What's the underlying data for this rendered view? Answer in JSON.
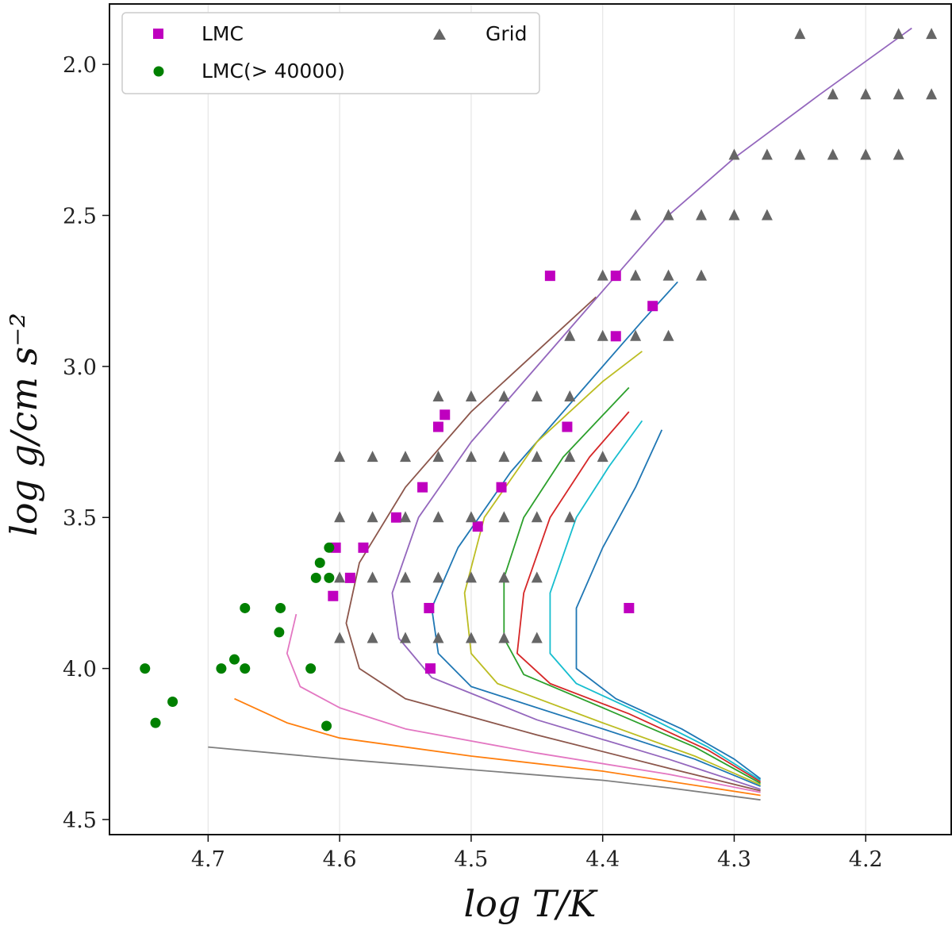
{
  "chart_data": {
    "type": "scatter",
    "xlabel": "log T/K",
    "ylabel": "log g/cm s⁻²",
    "xlim": [
      4.775,
      4.135
    ],
    "ylim": [
      4.55,
      1.8
    ],
    "x_ticks": [
      "4.7",
      "4.6",
      "4.5",
      "4.4",
      "4.3",
      "4.2"
    ],
    "y_ticks": [
      "2.0",
      "2.5",
      "3.0",
      "3.5",
      "4.0",
      "4.5"
    ],
    "grid": "x-only",
    "legend": {
      "placement": "top-left",
      "entries": [
        {
          "label": "LMC",
          "marker": "square",
          "color": "#bf00bf"
        },
        {
          "label": "LMC(> 40000)",
          "marker": "circle",
          "color": "#008000"
        },
        {
          "label": "Grid",
          "marker": "triangle",
          "color": "#666666"
        }
      ]
    },
    "scatter_series": [
      {
        "name": "LMC",
        "marker": "square",
        "color": "#bf00bf",
        "points": [
          [
            4.44,
            2.7
          ],
          [
            4.39,
            2.7
          ],
          [
            4.39,
            2.9
          ],
          [
            4.362,
            2.8
          ],
          [
            4.52,
            3.16
          ],
          [
            4.525,
            3.2
          ],
          [
            4.427,
            3.2
          ],
          [
            4.537,
            3.4
          ],
          [
            4.477,
            3.4
          ],
          [
            4.557,
            3.5
          ],
          [
            4.495,
            3.53
          ],
          [
            4.603,
            3.6
          ],
          [
            4.582,
            3.6
          ],
          [
            4.592,
            3.7
          ],
          [
            4.605,
            3.76
          ],
          [
            4.532,
            3.8
          ],
          [
            4.38,
            3.8
          ],
          [
            4.531,
            4.0
          ]
        ]
      },
      {
        "name": "LMC(> 40000)",
        "marker": "circle",
        "color": "#008000",
        "points": [
          [
            4.748,
            4.0
          ],
          [
            4.74,
            4.18
          ],
          [
            4.727,
            4.11
          ],
          [
            4.69,
            4.0
          ],
          [
            4.68,
            3.97
          ],
          [
            4.672,
            4.0
          ],
          [
            4.672,
            3.8
          ],
          [
            4.645,
            3.8
          ],
          [
            4.646,
            3.88
          ],
          [
            4.622,
            4.0
          ],
          [
            4.61,
            4.19
          ],
          [
            4.618,
            3.7
          ],
          [
            4.615,
            3.65
          ],
          [
            4.608,
            3.6
          ],
          [
            4.608,
            3.7
          ]
        ]
      },
      {
        "name": "Grid",
        "marker": "triangle",
        "color": "#666666",
        "points": [
          [
            4.25,
            1.9
          ],
          [
            4.175,
            1.9
          ],
          [
            4.15,
            1.9
          ],
          [
            4.225,
            2.1
          ],
          [
            4.2,
            2.1
          ],
          [
            4.175,
            2.1
          ],
          [
            4.15,
            2.1
          ],
          [
            4.3,
            2.3
          ],
          [
            4.275,
            2.3
          ],
          [
            4.25,
            2.3
          ],
          [
            4.225,
            2.3
          ],
          [
            4.2,
            2.3
          ],
          [
            4.175,
            2.3
          ],
          [
            4.375,
            2.5
          ],
          [
            4.35,
            2.5
          ],
          [
            4.325,
            2.5
          ],
          [
            4.3,
            2.5
          ],
          [
            4.275,
            2.5
          ],
          [
            4.4,
            2.7
          ],
          [
            4.375,
            2.7
          ],
          [
            4.35,
            2.7
          ],
          [
            4.325,
            2.7
          ],
          [
            4.425,
            2.9
          ],
          [
            4.4,
            2.9
          ],
          [
            4.375,
            2.9
          ],
          [
            4.35,
            2.9
          ],
          [
            4.525,
            3.1
          ],
          [
            4.5,
            3.1
          ],
          [
            4.475,
            3.1
          ],
          [
            4.45,
            3.1
          ],
          [
            4.425,
            3.1
          ],
          [
            4.6,
            3.3
          ],
          [
            4.575,
            3.3
          ],
          [
            4.55,
            3.3
          ],
          [
            4.525,
            3.3
          ],
          [
            4.5,
            3.3
          ],
          [
            4.475,
            3.3
          ],
          [
            4.45,
            3.3
          ],
          [
            4.425,
            3.3
          ],
          [
            4.4,
            3.3
          ],
          [
            4.6,
            3.5
          ],
          [
            4.575,
            3.5
          ],
          [
            4.55,
            3.5
          ],
          [
            4.525,
            3.5
          ],
          [
            4.5,
            3.5
          ],
          [
            4.475,
            3.5
          ],
          [
            4.45,
            3.5
          ],
          [
            4.425,
            3.5
          ],
          [
            4.6,
            3.7
          ],
          [
            4.575,
            3.7
          ],
          [
            4.55,
            3.7
          ],
          [
            4.525,
            3.7
          ],
          [
            4.5,
            3.7
          ],
          [
            4.475,
            3.7
          ],
          [
            4.45,
            3.7
          ],
          [
            4.6,
            3.9
          ],
          [
            4.575,
            3.9
          ],
          [
            4.55,
            3.9
          ],
          [
            4.525,
            3.9
          ],
          [
            4.5,
            3.9
          ],
          [
            4.475,
            3.9
          ],
          [
            4.45,
            3.9
          ]
        ]
      }
    ],
    "tracks": [
      {
        "color": "#7f7f7f",
        "points": [
          [
            4.7,
            4.26
          ],
          [
            4.6,
            4.3
          ],
          [
            4.5,
            4.335
          ],
          [
            4.4,
            4.37
          ],
          [
            4.35,
            4.395
          ],
          [
            4.28,
            4.435
          ]
        ]
      },
      {
        "color": "#ff7f0e",
        "points": [
          [
            4.68,
            4.1
          ],
          [
            4.64,
            4.18
          ],
          [
            4.6,
            4.23
          ],
          [
            4.5,
            4.29
          ],
          [
            4.4,
            4.34
          ],
          [
            4.28,
            4.42
          ]
        ]
      },
      {
        "color": "#e377c2",
        "points": [
          [
            4.633,
            3.82
          ],
          [
            4.64,
            3.95
          ],
          [
            4.63,
            4.06
          ],
          [
            4.6,
            4.13
          ],
          [
            4.55,
            4.2
          ],
          [
            4.45,
            4.28
          ],
          [
            4.35,
            4.35
          ],
          [
            4.28,
            4.41
          ]
        ]
      },
      {
        "color": "#8c564b",
        "points": [
          [
            4.405,
            2.77
          ],
          [
            4.45,
            2.95
          ],
          [
            4.5,
            3.15
          ],
          [
            4.55,
            3.4
          ],
          [
            4.585,
            3.65
          ],
          [
            4.595,
            3.85
          ],
          [
            4.585,
            4.0
          ],
          [
            4.55,
            4.1
          ],
          [
            4.45,
            4.22
          ],
          [
            4.35,
            4.33
          ],
          [
            4.28,
            4.405
          ]
        ]
      },
      {
        "color": "#9467bd",
        "points": [
          [
            4.165,
            1.88
          ],
          [
            4.235,
            2.1
          ],
          [
            4.3,
            2.31
          ],
          [
            4.35,
            2.5
          ],
          [
            4.4,
            2.75
          ],
          [
            4.45,
            3.0
          ],
          [
            4.5,
            3.25
          ],
          [
            4.54,
            3.5
          ],
          [
            4.56,
            3.75
          ],
          [
            4.555,
            3.9
          ],
          [
            4.53,
            4.03
          ],
          [
            4.45,
            4.17
          ],
          [
            4.35,
            4.3
          ],
          [
            4.28,
            4.4
          ]
        ]
      },
      {
        "color": "#1f77b4",
        "points": [
          [
            4.343,
            2.72
          ],
          [
            4.37,
            2.85
          ],
          [
            4.42,
            3.1
          ],
          [
            4.47,
            3.35
          ],
          [
            4.51,
            3.6
          ],
          [
            4.53,
            3.8
          ],
          [
            4.525,
            3.95
          ],
          [
            4.5,
            4.06
          ],
          [
            4.4,
            4.2
          ],
          [
            4.33,
            4.3
          ],
          [
            4.28,
            4.39
          ]
        ]
      },
      {
        "color": "#bcbd22",
        "points": [
          [
            4.37,
            2.95
          ],
          [
            4.4,
            3.05
          ],
          [
            4.45,
            3.25
          ],
          [
            4.49,
            3.5
          ],
          [
            4.505,
            3.75
          ],
          [
            4.5,
            3.95
          ],
          [
            4.48,
            4.05
          ],
          [
            4.4,
            4.18
          ],
          [
            4.33,
            4.29
          ],
          [
            4.28,
            4.385
          ]
        ]
      },
      {
        "color": "#2ca02c",
        "points": [
          [
            4.38,
            3.07
          ],
          [
            4.43,
            3.3
          ],
          [
            4.46,
            3.5
          ],
          [
            4.475,
            3.7
          ],
          [
            4.475,
            3.9
          ],
          [
            4.46,
            4.02
          ],
          [
            4.4,
            4.13
          ],
          [
            4.33,
            4.26
          ],
          [
            4.28,
            4.38
          ]
        ]
      },
      {
        "color": "#d62728",
        "points": [
          [
            4.38,
            3.15
          ],
          [
            4.41,
            3.3
          ],
          [
            4.44,
            3.5
          ],
          [
            4.46,
            3.75
          ],
          [
            4.465,
            3.95
          ],
          [
            4.44,
            4.05
          ],
          [
            4.38,
            4.15
          ],
          [
            4.32,
            4.27
          ],
          [
            4.28,
            4.375
          ]
        ]
      },
      {
        "color": "#17becf",
        "points": [
          [
            4.37,
            3.18
          ],
          [
            4.395,
            3.33
          ],
          [
            4.42,
            3.5
          ],
          [
            4.44,
            3.75
          ],
          [
            4.44,
            3.95
          ],
          [
            4.42,
            4.05
          ],
          [
            4.37,
            4.15
          ],
          [
            4.32,
            4.26
          ],
          [
            4.28,
            4.37
          ]
        ]
      },
      {
        "color": "#1f77b4",
        "points": [
          [
            4.355,
            3.21
          ],
          [
            4.375,
            3.4
          ],
          [
            4.4,
            3.6
          ],
          [
            4.42,
            3.8
          ],
          [
            4.42,
            4.0
          ],
          [
            4.39,
            4.1
          ],
          [
            4.34,
            4.2
          ],
          [
            4.3,
            4.3
          ],
          [
            4.28,
            4.365
          ]
        ]
      }
    ]
  }
}
